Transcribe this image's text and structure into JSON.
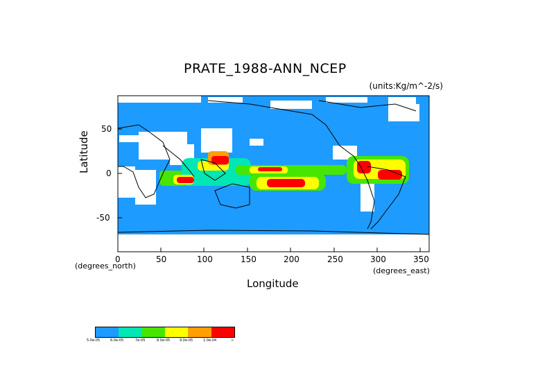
{
  "title": "PRATE_1988-ANN_NCEP",
  "units": "(units:Kg/m^-2/s)",
  "x_axis": {
    "label": "Longitude",
    "ticks": [
      "0",
      "50",
      "100",
      "150",
      "200",
      "250",
      "300",
      "350"
    ],
    "left_note": "(degrees_north)",
    "right_note": "(degrees_east)"
  },
  "y_axis": {
    "label": "Latitude",
    "ticks": [
      "50",
      "0",
      "-50"
    ]
  },
  "colors": {
    "ocean_low": "#1e9bff",
    "c2": "#00e6b4",
    "c3": "#46e600",
    "c4": "#ffff00",
    "c5": "#ffa000",
    "c6": "#ff0000",
    "dry": "#ffffff"
  },
  "legend": {
    "labels": [
      "5.0e-05",
      "6.0e-05",
      "7e-05",
      "8.0e-05",
      "9.0e-05",
      "1.0e-04",
      "∞"
    ]
  }
}
